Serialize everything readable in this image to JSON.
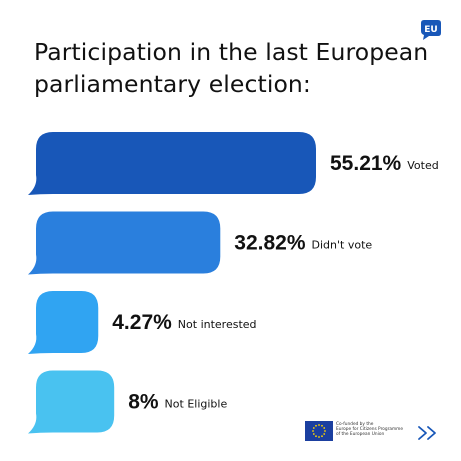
{
  "title": "Participation in the last European parliamentary election:",
  "badge": "EU",
  "chart_data": {
    "type": "bar",
    "orientation": "horizontal",
    "categories": [
      "Voted",
      "Didn't vote",
      "Not interested",
      "Not Eligible"
    ],
    "values": [
      55.21,
      32.82,
      4.27,
      8
    ],
    "value_labels": [
      "55.21%",
      "32.82%",
      "4.27%",
      "8%"
    ],
    "unit": "%",
    "colors": [
      "#1857b8",
      "#2a7fdd",
      "#30a4f2",
      "#49c2f0"
    ],
    "grid": false,
    "legend": "none"
  },
  "footer": {
    "cofunded_lines": [
      "Co-funded by the",
      "Europe for Citizens Programme",
      "of the European Union"
    ],
    "next_icon": "double-chevron-right-icon"
  }
}
